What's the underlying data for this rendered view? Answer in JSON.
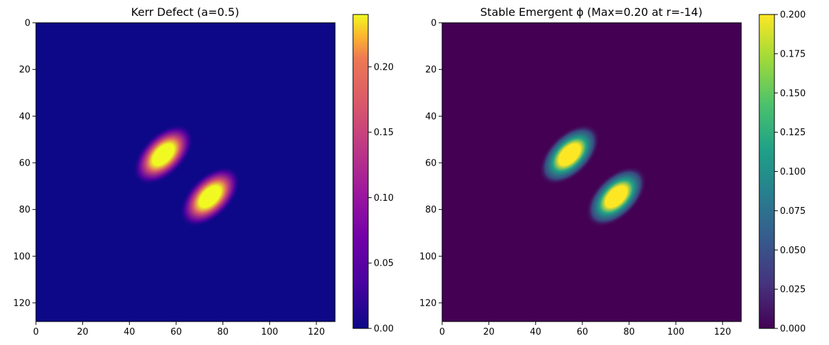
{
  "chart_data": [
    {
      "type": "heatmap",
      "title": "Kerr Defect (a=0.5)",
      "colormap": "plasma",
      "grid_size": 128,
      "xlim": [
        0,
        128
      ],
      "ylim": [
        128,
        0
      ],
      "x_ticks": [
        "0",
        "20",
        "40",
        "60",
        "80",
        "100",
        "120"
      ],
      "y_ticks": [
        "0",
        "20",
        "40",
        "60",
        "80",
        "100",
        "120"
      ],
      "colorbar": {
        "vmin": 0.0,
        "vmax": 0.24,
        "ticks": [
          "0.00",
          "0.05",
          "0.10",
          "0.15",
          "0.20"
        ]
      },
      "blobs": [
        {
          "center": [
            54,
            56
          ],
          "peak": 0.24,
          "label": "upper-left lobe"
        },
        {
          "center": [
            74,
            74
          ],
          "peak": 0.24,
          "label": "lower-right lobe"
        }
      ],
      "background_value": 0.0,
      "grid": false
    },
    {
      "type": "heatmap",
      "title": "Stable Emergent ϕ (Max=0.20 at r=-14)",
      "colormap": "viridis",
      "grid_size": 128,
      "xlim": [
        0,
        128
      ],
      "ylim": [
        128,
        0
      ],
      "x_ticks": [
        "0",
        "20",
        "40",
        "60",
        "80",
        "100",
        "120"
      ],
      "y_ticks": [
        "0",
        "20",
        "40",
        "60",
        "80",
        "100",
        "120"
      ],
      "colorbar": {
        "vmin": 0.0,
        "vmax": 0.2,
        "ticks": [
          "0.000",
          "0.025",
          "0.050",
          "0.075",
          "0.100",
          "0.125",
          "0.150",
          "0.175",
          "0.200"
        ]
      },
      "blobs": [
        {
          "center": [
            54,
            56
          ],
          "peak": 0.2,
          "label": "upper-left lobe"
        },
        {
          "center": [
            74,
            74
          ],
          "peak": 0.2,
          "label": "lower-right lobe"
        }
      ],
      "background_value": 0.0,
      "grid": false
    }
  ]
}
